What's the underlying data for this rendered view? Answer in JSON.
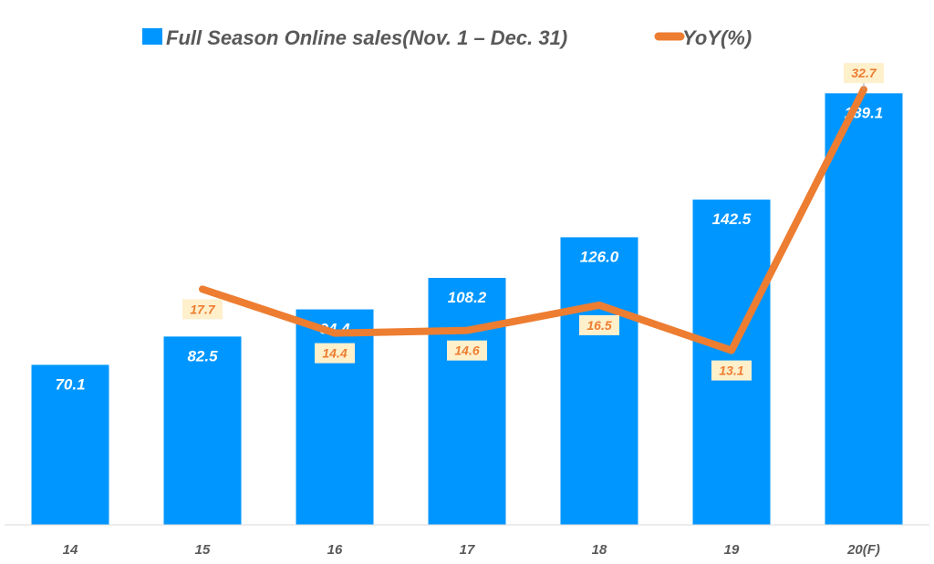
{
  "chart_data": {
    "type": "bar+line",
    "categories": [
      "14",
      "15",
      "16",
      "17",
      "18",
      "19",
      "20(F)"
    ],
    "series": [
      {
        "name": "Full Season Online sales(Nov. 1 – Dec. 31)",
        "type": "bar",
        "axis": "primary",
        "values": [
          70.1,
          82.5,
          94.4,
          108.2,
          126.0,
          142.5,
          189.1
        ],
        "labels": [
          "70.1",
          "82.5",
          "94.4",
          "108.2",
          "126.0",
          "142.5",
          "189.1"
        ]
      },
      {
        "name": "YoY(%)",
        "type": "line",
        "axis": "secondary",
        "values": [
          null,
          17.7,
          14.4,
          14.6,
          16.5,
          13.1,
          32.7
        ],
        "labels": [
          "",
          "17.7",
          "14.4",
          "14.6",
          "16.5",
          "13.1",
          "32.7"
        ]
      }
    ],
    "ylim": [
      0,
      210
    ],
    "y2lim": [
      0,
      36
    ],
    "grid": false,
    "legend_position": "top",
    "colors": {
      "bar": "#0096FF",
      "line": "#ED7D31",
      "line_label_bg": "#FFF0CC",
      "line_label_text": "#ED7D31",
      "text": "#595959",
      "axis": "#D9D9D9"
    }
  }
}
